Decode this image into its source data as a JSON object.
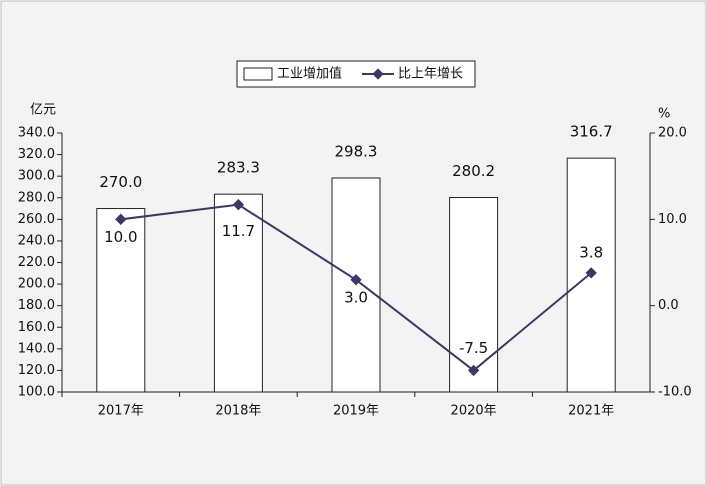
{
  "chart_data": {
    "type": "combo",
    "categories": [
      "2017年",
      "2018年",
      "2019年",
      "2020年",
      "2021年"
    ],
    "series": [
      {
        "name": "工业增加值",
        "type": "bar",
        "color": "#ffffff",
        "values": [
          270.0,
          283.3,
          298.3,
          280.2,
          316.7
        ],
        "value_labels": [
          "270.0",
          "283.3",
          "298.3",
          "280.2",
          "316.7"
        ]
      },
      {
        "name": "比上年增长",
        "type": "line",
        "axis": "y2",
        "color": "#3a3868",
        "values": [
          10.0,
          11.7,
          3.0,
          -7.5,
          3.8
        ],
        "value_labels": [
          "10.0",
          "11.7",
          "3.0",
          "-7.5",
          "3.8"
        ]
      }
    ],
    "y_label": "亿元",
    "y2_label": "%",
    "ylim": [
      100,
      340
    ],
    "yticks": [
      {
        "value": 100,
        "label": "100.0"
      },
      {
        "value": 120,
        "label": "120.0"
      },
      {
        "value": 140,
        "label": "140.0"
      },
      {
        "value": 160,
        "label": "160.0"
      },
      {
        "value": 180,
        "label": "180.0"
      },
      {
        "value": 200,
        "label": "200.0"
      },
      {
        "value": 220,
        "label": "220.0"
      },
      {
        "value": 240,
        "label": "240.0"
      },
      {
        "value": 260,
        "label": "260.0"
      },
      {
        "value": 280,
        "label": "280.0"
      },
      {
        "value": 300,
        "label": "300.0"
      },
      {
        "value": 320,
        "label": "320.0"
      },
      {
        "value": 340,
        "label": "340.0"
      }
    ],
    "y2lim": [
      -10,
      20
    ],
    "y2ticks": [
      {
        "value": -10,
        "label": "-10.0"
      },
      {
        "value": 0,
        "label": "0.0"
      },
      {
        "value": 10,
        "label": "10.0"
      },
      {
        "value": 20,
        "label": "20.0"
      }
    ],
    "grid": false,
    "legend": "top"
  }
}
